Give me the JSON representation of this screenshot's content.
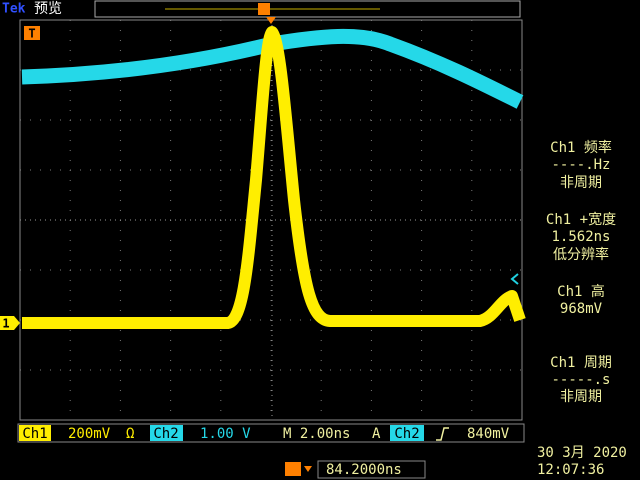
{
  "header": {
    "brand": "Tek",
    "mode": "预览"
  },
  "markers": {
    "trigger": "T",
    "ch1": "1"
  },
  "measurements": [
    {
      "label": "Ch1 频率",
      "value": "----.Hz",
      "status": "非周期"
    },
    {
      "label": "Ch1 +宽度",
      "value": "1.562ns",
      "status": "低分辨率"
    },
    {
      "label": "Ch1 高",
      "value": "968mV"
    },
    {
      "label": "Ch1 周期",
      "value": "-----.s",
      "status": "非周期"
    }
  ],
  "status_bar": {
    "ch1": "Ch1",
    "ch1_scale": "200mV",
    "ch1_coupling": "Ω",
    "ch2": "Ch2",
    "ch2_scale": "1.00 V",
    "timebase": "M 2.00ns",
    "trigger": "A",
    "trigger_source": "Ch2",
    "trigger_level": "840mV"
  },
  "trigger_position": "84.2000ns",
  "date": "30 3月 2020",
  "time": "12:07:36"
}
